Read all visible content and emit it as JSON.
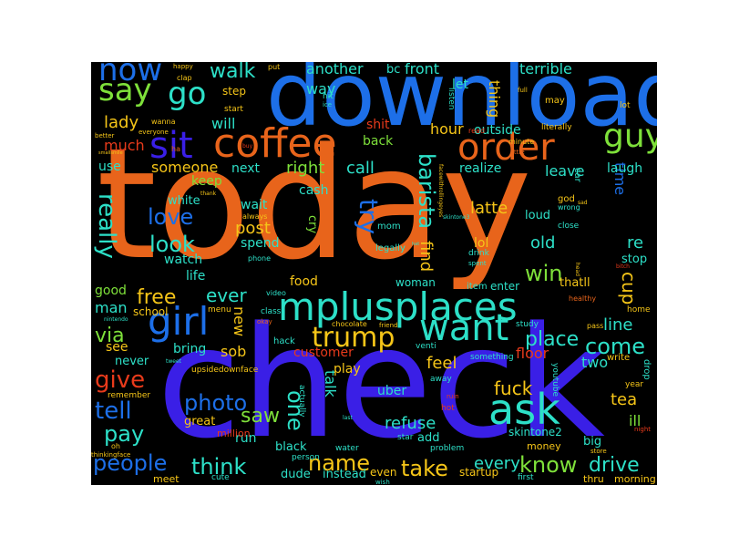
{
  "colors": {
    "background": "#000000",
    "page": "#ffffff",
    "palette": [
      "#e8641b",
      "#3a1fe6",
      "#1d6fe8",
      "#2de0c8",
      "#7ee03a",
      "#e83a1b",
      "#f5c518"
    ]
  },
  "words": {
    "today": "today",
    "check": "check",
    "download": "download",
    "coffee": "coffee",
    "order": "order",
    "mplusplaces": "mplusplaces",
    "want": "want",
    "girl": "girl",
    "sit": "sit",
    "guy": "guy",
    "say": "say",
    "go": "go",
    "now": "now",
    "walk": "walk",
    "ask": "ask",
    "trump": "trump",
    "barista": "barista",
    "photo": "photo",
    "love": "love",
    "look": "look",
    "really": "really",
    "give": "give",
    "tell": "tell",
    "pay": "pay",
    "people": "people",
    "think": "think",
    "name": "name",
    "take": "take",
    "know": "know",
    "drive": "drive",
    "come": "come",
    "place": "place",
    "win": "win",
    "one": "one",
    "saw": "saw",
    "free": "free",
    "ever": "ever",
    "via": "via",
    "lady": "lady",
    "much": "much",
    "someone": "someone",
    "next": "next",
    "right": "right",
    "call": "call",
    "try": "try",
    "find": "find",
    "latte": "latte",
    "old": "old",
    "re": "re",
    "cup": "cup",
    "time": "time",
    "leave": "leave",
    "laugh": "laugh",
    "realize": "realize",
    "hour": "hour",
    "outside": "outside",
    "thing": "thing",
    "terrible": "terrible",
    "front": "front",
    "another": "another",
    "bc": "bc",
    "way": "way",
    "will": "will",
    "step": "step",
    "post": "post",
    "wait": "wait",
    "spend": "spend",
    "keep": "keep",
    "white": "white",
    "watch": "watch",
    "life": "life",
    "good": "good",
    "man": "man",
    "school": "school",
    "see": "see",
    "bring": "bring",
    "sob": "sob",
    "never": "never",
    "new": "new",
    "customer": "customer",
    "feel": "feel",
    "talk": "talk",
    "refuse": "refuse",
    "fuck": "fuck",
    "every": "every",
    "floor": "floor",
    "two": "two",
    "tea": "tea",
    "ill": "ill",
    "line": "line",
    "stop": "stop",
    "thatll": "thatll",
    "lol": "lol",
    "food": "food",
    "woman": "woman",
    "cry": "cry",
    "cash": "cash",
    "loud": "loud",
    "play": "play",
    "uber": "uber",
    "run": "run",
    "black": "black",
    "dude": "dude",
    "instead": "instead",
    "even": "even",
    "add": "add",
    "startup": "startup",
    "shit": "shit",
    "back": "back",
    "let": "let",
    "use": "use",
    "great": "great",
    "million": "million",
    "skintone2": "skintone2",
    "money": "money",
    "big": "big",
    "thru": "thru",
    "morning": "morning",
    "meet": "meet",
    "cute": "cute",
    "upsidedownface": "upsidedownface",
    "remember": "remember",
    "write": "write",
    "drop": "drop",
    "hack": "hack",
    "enter": "enter",
    "item": "item",
    "mom": "mom",
    "legally": "legally",
    "god": "god",
    "wrong": "wrong",
    "close": "close",
    "drink": "drink",
    "spent": "spent",
    "car": "car",
    "home": "home",
    "healthy": "healthy",
    "pass": "pass",
    "youtube": "youtube",
    "year": "year",
    "night": "night",
    "store": "store",
    "first": "first",
    "wish": "wish",
    "problem": "problem",
    "star": "star",
    "water": "water",
    "person": "person",
    "actually": "actually",
    "venti": "venti",
    "away": "away",
    "ruin": "ruin",
    "hot": "hot",
    "something": "something",
    "study": "study",
    "friend": "friend",
    "chocolate": "chocolate",
    "class": "class",
    "menu": "menu",
    "okay": "okay",
    "video": "video",
    "phone": "phone",
    "always": "always",
    "minute": "minute",
    "little": "little",
    "read": "read",
    "literally": "literally",
    "may": "may",
    "lot": "lot",
    "full": "full",
    "listen": "listen",
    "hit": "hit",
    "ice": "ice",
    "start": "start",
    "put": "put",
    "happy": "happy",
    "clap": "clap",
    "wanna": "wanna",
    "everyone": "everyone",
    "better": "better",
    "ha": "ha",
    "tweet": "tweet",
    "oh": "oh",
    "thinkingface": "thinkingface",
    "nintendo": "nintendo",
    "bitch": "bitch",
    "sad": "sad",
    "head": "head",
    "last": "last",
    "thank": "thank",
    "buy": "buy",
    "smallsmile": "smallsmile",
    "facewithrollingeyes": "facewithrollingeyes",
    "skintone3": "skintone3",
    "hat": "hat"
  }
}
